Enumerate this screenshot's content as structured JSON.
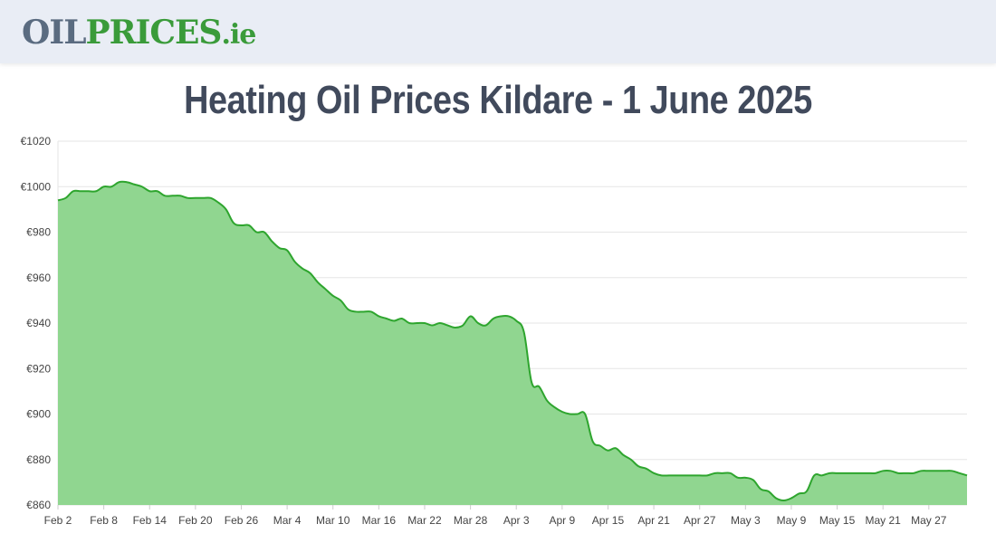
{
  "header": {
    "logo_part1": "OIL",
    "logo_part2": "PRICES",
    "logo_part3": ".ie"
  },
  "page_title": "Heating Oil Prices Kildare - 1 June 2025",
  "colors": {
    "line": "#2ea52e",
    "fill": "#90d690",
    "grid": "#e6e6e6",
    "title": "#414a5c"
  },
  "chart_data": {
    "type": "area",
    "title": "Heating Oil Prices Kildare - 1 June 2025",
    "ylim": [
      860,
      1020
    ],
    "y_ticks": [
      1020,
      1000,
      980,
      960,
      940,
      920,
      900,
      880,
      860
    ],
    "y_tick_labels": [
      "€1020",
      "€1000",
      "€980",
      "€960",
      "€940",
      "€920",
      "€900",
      "€880",
      "€860"
    ],
    "x_range": [
      "2025-02-02",
      "2025-06-01"
    ],
    "x_ticks": [
      "2025-02-02",
      "2025-02-08",
      "2025-02-14",
      "2025-02-20",
      "2025-02-26",
      "2025-03-04",
      "2025-03-10",
      "2025-03-16",
      "2025-03-22",
      "2025-03-28",
      "2025-04-03",
      "2025-04-09",
      "2025-04-15",
      "2025-04-21",
      "2025-04-27",
      "2025-05-03",
      "2025-05-09",
      "2025-05-15",
      "2025-05-21",
      "2025-05-27"
    ],
    "x_tick_labels": [
      "Feb 2",
      "Feb 8",
      "Feb 14",
      "Feb 20",
      "Feb 26",
      "Mar 4",
      "Mar 10",
      "Mar 16",
      "Mar 22",
      "Mar 28",
      "Apr 3",
      "Apr 9",
      "Apr 15",
      "Apr 21",
      "Apr 27",
      "May 3",
      "May 9",
      "May 15",
      "May 21",
      "May 27"
    ],
    "grid": true,
    "legend": "none",
    "series": [
      {
        "points": [
          [
            "2025-02-02",
            994
          ],
          [
            "2025-02-03",
            995
          ],
          [
            "2025-02-04",
            998
          ],
          [
            "2025-02-05",
            998
          ],
          [
            "2025-02-06",
            998
          ],
          [
            "2025-02-07",
            998
          ],
          [
            "2025-02-08",
            1000
          ],
          [
            "2025-02-09",
            1000
          ],
          [
            "2025-02-10",
            1002
          ],
          [
            "2025-02-11",
            1002
          ],
          [
            "2025-02-12",
            1001
          ],
          [
            "2025-02-13",
            1000
          ],
          [
            "2025-02-14",
            998
          ],
          [
            "2025-02-15",
            998
          ],
          [
            "2025-02-16",
            996
          ],
          [
            "2025-02-17",
            996
          ],
          [
            "2025-02-18",
            996
          ],
          [
            "2025-02-19",
            995
          ],
          [
            "2025-02-20",
            995
          ],
          [
            "2025-02-21",
            995
          ],
          [
            "2025-02-22",
            995
          ],
          [
            "2025-02-23",
            993
          ],
          [
            "2025-02-24",
            990
          ],
          [
            "2025-02-25",
            984
          ],
          [
            "2025-02-26",
            983
          ],
          [
            "2025-02-27",
            983
          ],
          [
            "2025-02-28",
            980
          ],
          [
            "2025-03-01",
            980
          ],
          [
            "2025-03-02",
            976
          ],
          [
            "2025-03-03",
            973
          ],
          [
            "2025-03-04",
            972
          ],
          [
            "2025-03-05",
            967
          ],
          [
            "2025-03-06",
            964
          ],
          [
            "2025-03-07",
            962
          ],
          [
            "2025-03-08",
            958
          ],
          [
            "2025-03-09",
            955
          ],
          [
            "2025-03-10",
            952
          ],
          [
            "2025-03-11",
            950
          ],
          [
            "2025-03-12",
            946
          ],
          [
            "2025-03-13",
            945
          ],
          [
            "2025-03-14",
            945
          ],
          [
            "2025-03-15",
            945
          ],
          [
            "2025-03-16",
            943
          ],
          [
            "2025-03-17",
            942
          ],
          [
            "2025-03-18",
            941
          ],
          [
            "2025-03-19",
            942
          ],
          [
            "2025-03-20",
            940
          ],
          [
            "2025-03-21",
            940
          ],
          [
            "2025-03-22",
            940
          ],
          [
            "2025-03-23",
            939
          ],
          [
            "2025-03-24",
            940
          ],
          [
            "2025-03-25",
            939
          ],
          [
            "2025-03-26",
            938
          ],
          [
            "2025-03-27",
            939
          ],
          [
            "2025-03-28",
            943
          ],
          [
            "2025-03-29",
            940
          ],
          [
            "2025-03-30",
            939
          ],
          [
            "2025-03-31",
            942
          ],
          [
            "2025-04-01",
            943
          ],
          [
            "2025-04-02",
            943
          ],
          [
            "2025-04-03",
            941
          ],
          [
            "2025-04-04",
            936
          ],
          [
            "2025-04-05",
            914
          ],
          [
            "2025-04-06",
            912
          ],
          [
            "2025-04-07",
            906
          ],
          [
            "2025-04-08",
            903
          ],
          [
            "2025-04-09",
            901
          ],
          [
            "2025-04-10",
            900
          ],
          [
            "2025-04-11",
            900
          ],
          [
            "2025-04-12",
            900
          ],
          [
            "2025-04-13",
            888
          ],
          [
            "2025-04-14",
            886
          ],
          [
            "2025-04-15",
            884
          ],
          [
            "2025-04-16",
            885
          ],
          [
            "2025-04-17",
            882
          ],
          [
            "2025-04-18",
            880
          ],
          [
            "2025-04-19",
            877
          ],
          [
            "2025-04-20",
            876
          ],
          [
            "2025-04-21",
            874
          ],
          [
            "2025-04-22",
            873
          ],
          [
            "2025-04-23",
            873
          ],
          [
            "2025-04-24",
            873
          ],
          [
            "2025-04-25",
            873
          ],
          [
            "2025-04-26",
            873
          ],
          [
            "2025-04-27",
            873
          ],
          [
            "2025-04-28",
            873
          ],
          [
            "2025-04-29",
            874
          ],
          [
            "2025-04-30",
            874
          ],
          [
            "2025-05-01",
            874
          ],
          [
            "2025-05-02",
            872
          ],
          [
            "2025-05-03",
            872
          ],
          [
            "2025-05-04",
            871
          ],
          [
            "2025-05-05",
            867
          ],
          [
            "2025-05-06",
            866
          ],
          [
            "2025-05-07",
            863
          ],
          [
            "2025-05-08",
            862
          ],
          [
            "2025-05-09",
            863
          ],
          [
            "2025-05-10",
            865
          ],
          [
            "2025-05-11",
            866
          ],
          [
            "2025-05-12",
            873
          ],
          [
            "2025-05-13",
            873
          ],
          [
            "2025-05-14",
            874
          ],
          [
            "2025-05-15",
            874
          ],
          [
            "2025-05-16",
            874
          ],
          [
            "2025-05-17",
            874
          ],
          [
            "2025-05-18",
            874
          ],
          [
            "2025-05-19",
            874
          ],
          [
            "2025-05-20",
            874
          ],
          [
            "2025-05-21",
            875
          ],
          [
            "2025-05-22",
            875
          ],
          [
            "2025-05-23",
            874
          ],
          [
            "2025-05-24",
            874
          ],
          [
            "2025-05-25",
            874
          ],
          [
            "2025-05-26",
            875
          ],
          [
            "2025-05-27",
            875
          ],
          [
            "2025-05-28",
            875
          ],
          [
            "2025-05-29",
            875
          ],
          [
            "2025-05-30",
            875
          ],
          [
            "2025-05-31",
            874
          ],
          [
            "2025-06-01",
            873
          ]
        ]
      }
    ]
  }
}
